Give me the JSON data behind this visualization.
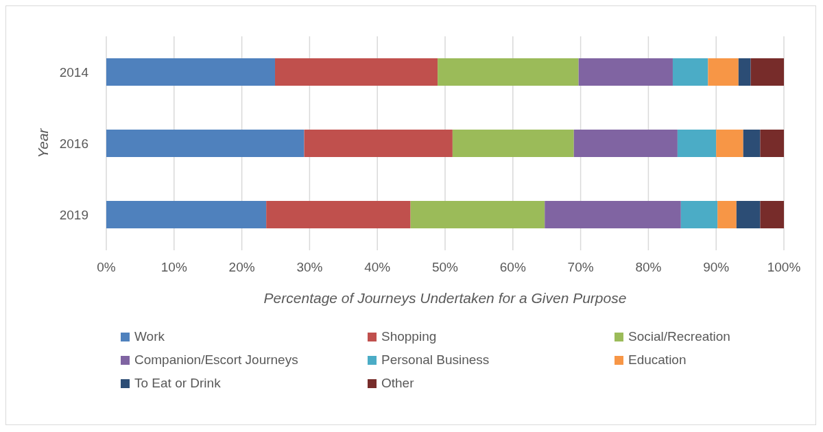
{
  "chart_data": {
    "type": "bar",
    "orientation": "horizontal",
    "stacked": true,
    "categories": [
      "2014",
      "2016",
      "2019"
    ],
    "xlabel": "Percentage of Journeys Undertaken for a Given Purpose",
    "ylabel": "Year",
    "series": [
      {
        "name": "Work",
        "color": "#4f81bd",
        "values": [
          24.9,
          29.2,
          23.6
        ]
      },
      {
        "name": "Shopping",
        "color": "#c0504d",
        "values": [
          24.0,
          21.9,
          21.3
        ]
      },
      {
        "name": "Social/Recreation",
        "color": "#9bbb59",
        "values": [
          20.8,
          17.9,
          19.8
        ]
      },
      {
        "name": "Companion/Escort Journeys",
        "color": "#8064a2",
        "values": [
          13.9,
          15.3,
          20.1
        ]
      },
      {
        "name": "Personal Business",
        "color": "#4bacc6",
        "values": [
          5.2,
          5.7,
          5.4
        ]
      },
      {
        "name": "Education",
        "color": "#f79646",
        "values": [
          4.5,
          4.0,
          2.8
        ]
      },
      {
        "name": "To Eat or Drink",
        "color": "#2c4d75",
        "values": [
          1.8,
          2.5,
          3.5
        ]
      },
      {
        "name": "Other",
        "color": "#772c2a",
        "values": [
          4.9,
          3.5,
          3.5
        ]
      }
    ],
    "xlim": [
      0,
      100
    ],
    "xticks": [
      {
        "value": 0,
        "label": "0%"
      },
      {
        "value": 10,
        "label": "10%"
      },
      {
        "value": 20,
        "label": "20%"
      },
      {
        "value": 30,
        "label": "30%"
      },
      {
        "value": 40,
        "label": "40%"
      },
      {
        "value": 50,
        "label": "50%"
      },
      {
        "value": 60,
        "label": "60%"
      },
      {
        "value": 70,
        "label": "70%"
      },
      {
        "value": 80,
        "label": "80%"
      },
      {
        "value": 90,
        "label": "90%"
      },
      {
        "value": 100,
        "label": "100%"
      }
    ],
    "grid": "x",
    "legend": "bottom"
  }
}
